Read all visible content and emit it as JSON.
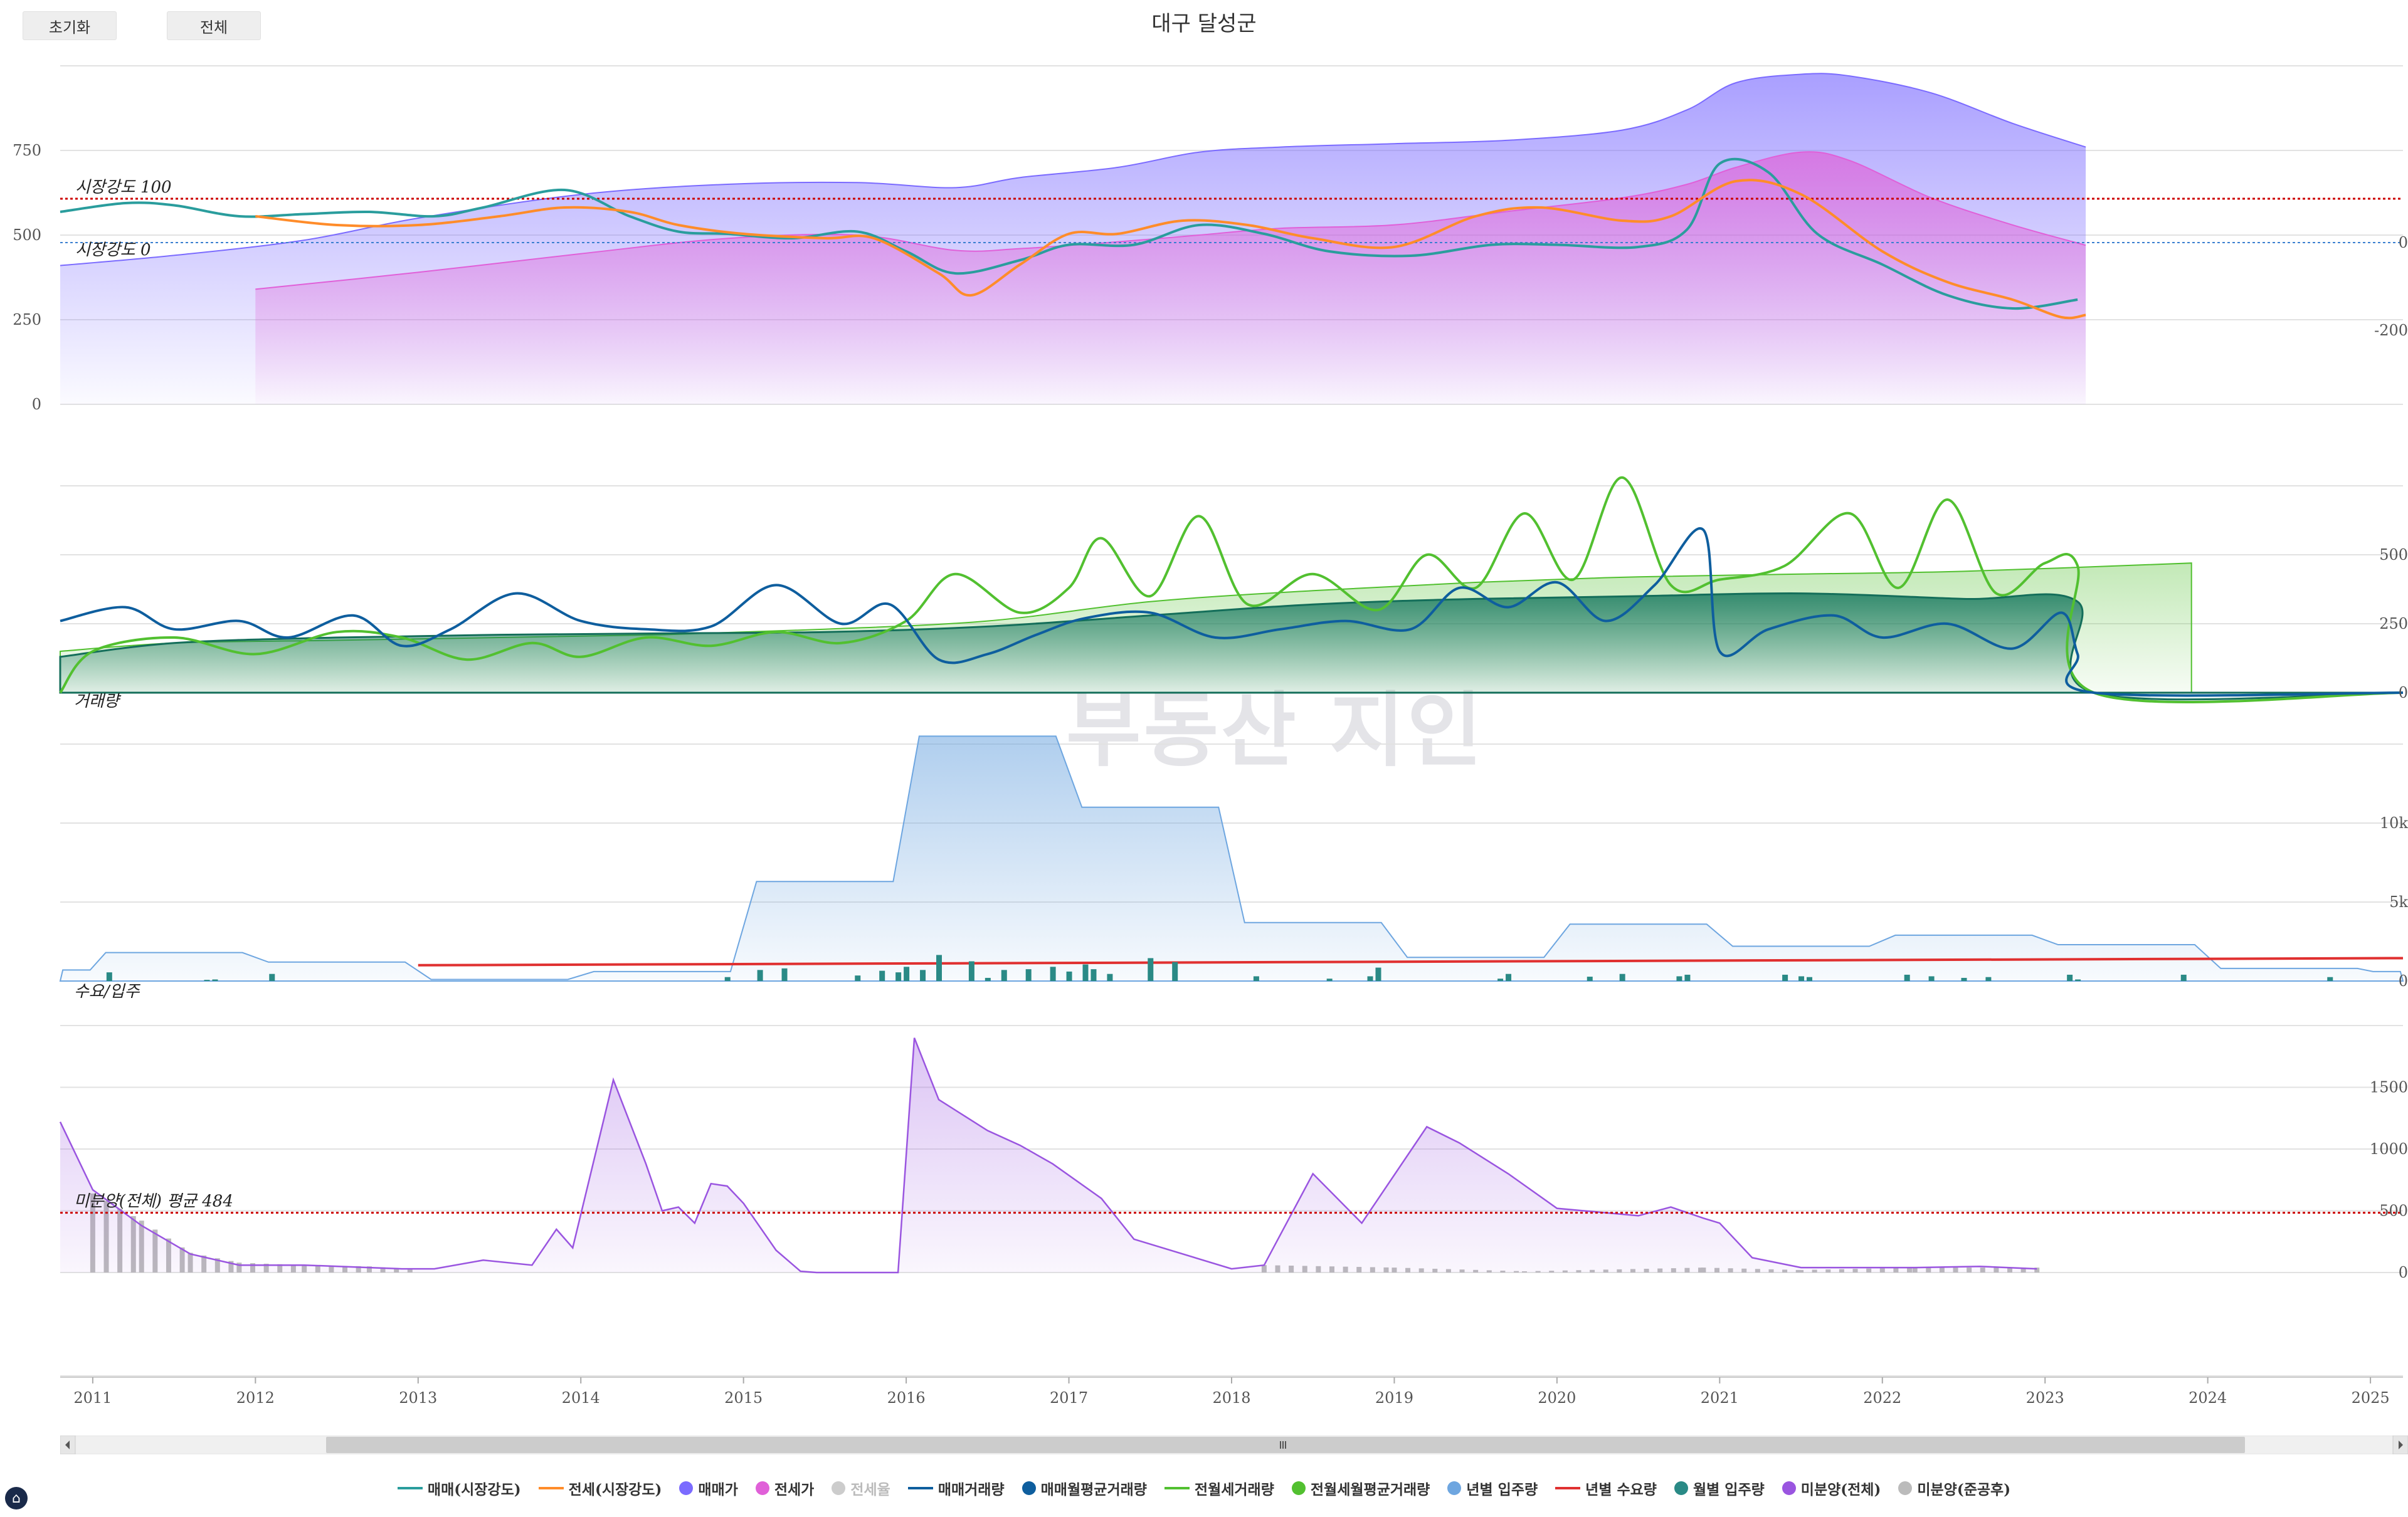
{
  "title": "대구 달성군",
  "buttons": {
    "reset": "초기화",
    "all": "전체"
  },
  "watermark": {
    "main": "부동산 지인",
    "sub": ""
  },
  "colors": {
    "sale_strength": "#2a9d9d",
    "jeonse_strength": "#ff8c2a",
    "sale_price": "#7b6bff",
    "jeonse_price": "#e060d8",
    "sale_volume": "#0e5e9e",
    "jeonse_volume": "#52c030",
    "supply": "#6ea6e0",
    "demand": "#e03030",
    "monthly_supply": "#2a8a86",
    "unsold": "#9a55e0",
    "unsold_done": "#bbbbbb"
  },
  "chart_data": [
    {
      "type": "area",
      "panel": "price",
      "annotations": [
        "시장강도 100",
        "시장강도 0"
      ],
      "left_ticks": [
        "0",
        "250",
        "500",
        "750"
      ],
      "right_ticks": [
        "0",
        "-200"
      ],
      "series": [
        {
          "name": "매매(시장강도)",
          "x": [
            2010.8,
            2011.2,
            2011.5,
            2011.9,
            2012.3,
            2012.7,
            2013.1,
            2013.4,
            2013.9,
            2014.3,
            2014.6,
            2014.9,
            2015.3,
            2015.7,
            2016.0,
            2016.3,
            2016.7,
            2017.0,
            2017.4,
            2017.8,
            2018.2,
            2018.6,
            2019.1,
            2019.6,
            2020.0,
            2020.5,
            2020.8,
            2021.0,
            2021.3,
            2021.6,
            2022.0,
            2022.4,
            2022.8,
            2023.2
          ],
          "y": [
            70,
            90,
            85,
            60,
            65,
            70,
            60,
            80,
            120,
            60,
            25,
            20,
            10,
            25,
            -20,
            -70,
            -40,
            -5,
            -5,
            40,
            20,
            -20,
            -30,
            -5,
            -5,
            -10,
            30,
            180,
            160,
            20,
            -50,
            -120,
            -150,
            -130
          ]
        },
        {
          "name": "전세(시장강도)",
          "x": [
            2012.0,
            2012.5,
            2013.0,
            2013.5,
            2013.9,
            2014.3,
            2014.6,
            2015.0,
            2015.5,
            2015.8,
            2016.2,
            2016.4,
            2016.7,
            2017.0,
            2017.3,
            2017.7,
            2018.1,
            2018.5,
            2019.0,
            2019.5,
            2019.9,
            2020.4,
            2020.7,
            2021.1,
            2021.5,
            2022.0,
            2022.4,
            2022.8,
            2023.1,
            2023.25
          ],
          "y": [
            60,
            40,
            40,
            60,
            80,
            70,
            40,
            20,
            10,
            10,
            -70,
            -120,
            -50,
            20,
            20,
            50,
            40,
            10,
            -10,
            60,
            80,
            50,
            60,
            140,
            110,
            -20,
            -90,
            -130,
            -170,
            -165
          ]
        },
        {
          "name": "매매가",
          "x": [
            2010.8,
            2011.5,
            2012.3,
            2013.0,
            2014.0,
            2014.9,
            2015.7,
            2016.3,
            2016.7,
            2017.3,
            2017.8,
            2018.3,
            2019.0,
            2019.7,
            2020.4,
            2020.8,
            2021.1,
            2021.5,
            2021.8,
            2022.3,
            2022.8,
            2023.25
          ],
          "y": [
            410,
            440,
            485,
            550,
            620,
            650,
            655,
            640,
            670,
            700,
            745,
            760,
            770,
            780,
            810,
            870,
            950,
            975,
            970,
            920,
            830,
            760
          ]
        },
        {
          "name": "전세가",
          "x": [
            2012.0,
            2013.0,
            2014.0,
            2014.9,
            2015.7,
            2016.3,
            2016.7,
            2017.3,
            2017.8,
            2018.3,
            2019.0,
            2019.7,
            2020.4,
            2020.8,
            2021.1,
            2021.5,
            2021.8,
            2022.3,
            2022.8,
            2023.25
          ],
          "y": [
            340,
            390,
            445,
            490,
            500,
            455,
            460,
            480,
            500,
            520,
            530,
            570,
            610,
            650,
            700,
            745,
            720,
            610,
            530,
            470
          ]
        }
      ]
    },
    {
      "type": "line",
      "panel": "volume",
      "annotations": [
        "거래량"
      ],
      "right_ticks": [
        "0",
        "250",
        "500"
      ],
      "series": [
        {
          "name": "매매거래량",
          "x": [
            2010.8,
            2011.2,
            2011.5,
            2011.9,
            2012.2,
            2012.6,
            2012.9,
            2013.2,
            2013.6,
            2014.0,
            2014.4,
            2014.8,
            2015.2,
            2015.6,
            2015.9,
            2016.2,
            2016.5,
            2016.8,
            2017.1,
            2017.5,
            2017.9,
            2018.3,
            2018.7,
            2019.1,
            2019.4,
            2019.7,
            2020.0,
            2020.3,
            2020.6,
            2020.9,
            2021.0,
            2021.3,
            2021.7,
            2022.0,
            2022.4,
            2022.8,
            2023.1,
            2023.2,
            2023.3,
            2025.2
          ],
          "y": [
            260,
            310,
            230,
            260,
            200,
            280,
            170,
            230,
            360,
            260,
            230,
            240,
            390,
            250,
            320,
            120,
            140,
            210,
            270,
            290,
            200,
            230,
            260,
            230,
            380,
            310,
            400,
            260,
            390,
            590,
            150,
            230,
            280,
            200,
            250,
            160,
            290,
            140,
            0,
            0
          ]
        },
        {
          "name": "매매월평균거래량",
          "x": [
            2010.8,
            2011.5,
            2012.5,
            2013.5,
            2014.5,
            2015.5,
            2016.5,
            2017.5,
            2018.5,
            2019.5,
            2020.5,
            2021.5,
            2022.5,
            2023.2,
            2023.3,
            2025.2
          ],
          "y": [
            130,
            180,
            200,
            210,
            215,
            220,
            240,
            280,
            320,
            340,
            350,
            360,
            340,
            330,
            0,
            0
          ]
        },
        {
          "name": "전월세거래량",
          "x": [
            2010.8,
            2011.0,
            2011.5,
            2012.0,
            2012.5,
            2012.9,
            2013.3,
            2013.7,
            2014.0,
            2014.4,
            2014.8,
            2015.2,
            2015.6,
            2016.0,
            2016.3,
            2016.7,
            2017.0,
            2017.2,
            2017.5,
            2017.8,
            2018.1,
            2018.5,
            2018.9,
            2019.2,
            2019.5,
            2019.8,
            2020.1,
            2020.4,
            2020.7,
            2021.0,
            2021.4,
            2021.8,
            2022.1,
            2022.4,
            2022.7,
            2023.0,
            2023.2,
            2023.3,
            2025.2
          ],
          "y": [
            0,
            150,
            200,
            140,
            220,
            200,
            120,
            180,
            130,
            200,
            170,
            220,
            180,
            260,
            430,
            290,
            380,
            560,
            350,
            640,
            320,
            430,
            300,
            500,
            380,
            650,
            410,
            780,
            390,
            410,
            460,
            650,
            380,
            700,
            360,
            470,
            460,
            0,
            0
          ]
        },
        {
          "name": "전월세월평균거래량",
          "x": [
            2010.8,
            2011.5,
            2012.5,
            2013.5,
            2014.5,
            2015.5,
            2016.5,
            2017.5,
            2018.5,
            2019.5,
            2020.5,
            2021.5,
            2022.5,
            2023.9
          ],
          "y": [
            150,
            180,
            190,
            200,
            210,
            230,
            260,
            330,
            370,
            400,
            420,
            430,
            440,
            470
          ]
        }
      ]
    },
    {
      "type": "area",
      "panel": "supply",
      "annotations": [
        "수요/입주"
      ],
      "right_ticks": [
        "0",
        "5k",
        "10k"
      ],
      "series": [
        {
          "name": "년별 입주량",
          "x": [
            2010.8,
            2011,
            2012,
            2013,
            2014,
            2015,
            2016,
            2017,
            2018,
            2019,
            2020,
            2021,
            2022,
            2023,
            2024,
            2025,
            2025.2
          ],
          "y": [
            700,
            1800,
            1200,
            100,
            600,
            6300,
            15500,
            11000,
            3700,
            1500,
            3600,
            2200,
            2900,
            2300,
            800,
            600,
            0
          ]
        },
        {
          "name": "년별 수요량",
          "x": [
            2013.0,
            2025.2
          ],
          "y": [
            1000,
            1450
          ]
        },
        {
          "name": "월별 입주량",
          "x": [
            2011.1,
            2011.7,
            2011.75,
            2012.1,
            2014.9,
            2015.1,
            2015.25,
            2015.7,
            2015.85,
            2015.95,
            2016.0,
            2016.1,
            2016.2,
            2016.4,
            2016.5,
            2016.6,
            2016.75,
            2016.9,
            2017.0,
            2017.1,
            2017.15,
            2017.25,
            2017.5,
            2017.65,
            2018.15,
            2018.6,
            2018.85,
            2018.9,
            2019.65,
            2019.7,
            2020.2,
            2020.4,
            2020.75,
            2020.8,
            2021.4,
            2021.5,
            2021.55,
            2022.15,
            2022.3,
            2022.5,
            2022.65,
            2023.15,
            2023.2,
            2023.85,
            2024.75
          ],
          "y": [
            1100,
            150,
            200,
            900,
            500,
            1400,
            1600,
            700,
            1300,
            1100,
            1800,
            1400,
            3300,
            2500,
            400,
            1400,
            1500,
            1800,
            1200,
            2100,
            1500,
            900,
            2900,
            2400,
            600,
            300,
            600,
            1700,
            300,
            900,
            550,
            900,
            600,
            800,
            800,
            600,
            500,
            800,
            600,
            400,
            500,
            800,
            200,
            800,
            500
          ]
        }
      ]
    },
    {
      "type": "line",
      "panel": "unsold",
      "annotations": [
        "미분양(전체) 평균 484"
      ],
      "right_ticks": [
        "0",
        "500",
        "1000",
        "1500"
      ],
      "x_ticks": [
        "2011",
        "2012",
        "2013",
        "2014",
        "2015",
        "2016",
        "2017",
        "2018",
        "2019",
        "2020",
        "2021",
        "2022",
        "2023",
        "2024",
        "2025"
      ],
      "series": [
        {
          "name": "미분양(전체)",
          "x": [
            2010.8,
            2011.0,
            2011.3,
            2011.6,
            2011.9,
            2012.3,
            2012.7,
            2012.9,
            2013.1,
            2013.4,
            2013.7,
            2013.85,
            2013.95,
            2014.2,
            2014.4,
            2014.5,
            2014.6,
            2014.7,
            2014.8,
            2014.9,
            2015.0,
            2015.2,
            2015.35,
            2015.45,
            2015.9,
            2015.95,
            2016.05,
            2016.2,
            2016.5,
            2016.7,
            2016.9,
            2017.2,
            2017.4,
            2018.0,
            2018.2,
            2018.5,
            2018.8,
            2019.2,
            2019.4,
            2019.7,
            2020.0,
            2020.5,
            2020.7,
            2020.9,
            2021.0,
            2021.2,
            2021.5,
            2022.2,
            2022.6,
            2022.95
          ],
          "y": [
            1220,
            670,
            380,
            150,
            60,
            60,
            40,
            30,
            30,
            100,
            60,
            350,
            200,
            1560,
            880,
            500,
            530,
            400,
            720,
            700,
            560,
            180,
            10,
            0,
            0,
            0,
            1900,
            1400,
            1150,
            1030,
            880,
            600,
            270,
            30,
            60,
            800,
            400,
            1180,
            1050,
            800,
            520,
            460,
            530,
            440,
            400,
            120,
            40,
            40,
            50,
            30
          ]
        },
        {
          "name": "미분양(준공후)",
          "x": [
            2011.0,
            2011.3,
            2011.6,
            2011.9,
            2012.3,
            2012.7,
            2013.0,
            2018.2,
            2019.0,
            2019.8,
            2020.9,
            2021.5,
            2022.2,
            2022.95
          ],
          "y": [
            640,
            420,
            160,
            80,
            60,
            50,
            20,
            60,
            40,
            10,
            40,
            20,
            40,
            40
          ]
        },
        {
          "name": "전세율",
          "x": [],
          "y": []
        }
      ]
    }
  ]
}
